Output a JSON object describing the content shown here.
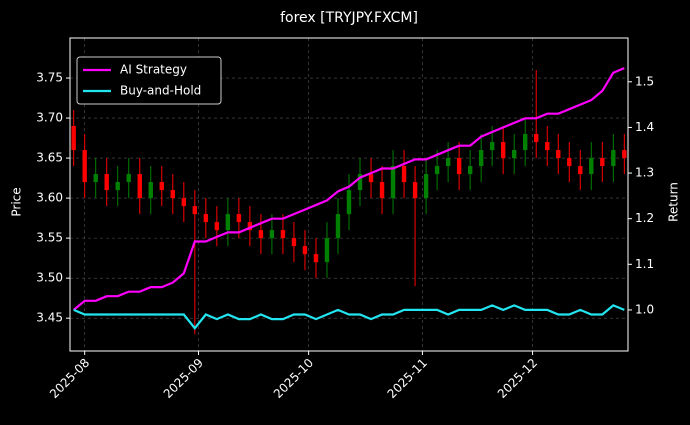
{
  "chart_data": {
    "type": "candlestick",
    "title": "forex [TRYJPY.FXCM]",
    "ylabel": "Price",
    "y2label": "Return",
    "x": [
      "2025-07-29",
      "2025-08-01",
      "2025-08-04",
      "2025-08-07",
      "2025-08-10",
      "2025-08-13",
      "2025-08-16",
      "2025-08-19",
      "2025-08-22",
      "2025-08-25",
      "2025-08-28",
      "2025-08-31",
      "2025-09-03",
      "2025-09-06",
      "2025-09-09",
      "2025-09-12",
      "2025-09-15",
      "2025-09-18",
      "2025-09-21",
      "2025-09-24",
      "2025-09-27",
      "2025-09-30",
      "2025-10-03",
      "2025-10-06",
      "2025-10-09",
      "2025-10-12",
      "2025-10-15",
      "2025-10-18",
      "2025-10-21",
      "2025-10-24",
      "2025-10-27",
      "2025-10-30",
      "2025-11-02",
      "2025-11-05",
      "2025-11-08",
      "2025-11-11",
      "2025-11-14",
      "2025-11-17",
      "2025-11-20",
      "2025-11-23",
      "2025-11-26",
      "2025-11-29",
      "2025-12-02",
      "2025-12-05",
      "2025-12-08",
      "2025-12-11",
      "2025-12-14",
      "2025-12-17",
      "2025-12-20",
      "2025-12-23",
      "2025-12-26"
    ],
    "open": [
      3.69,
      3.66,
      3.62,
      3.63,
      3.61,
      3.62,
      3.63,
      3.6,
      3.62,
      3.61,
      3.6,
      3.59,
      3.58,
      3.57,
      3.56,
      3.58,
      3.57,
      3.56,
      3.55,
      3.56,
      3.55,
      3.54,
      3.53,
      3.52,
      3.55,
      3.58,
      3.61,
      3.63,
      3.62,
      3.6,
      3.64,
      3.62,
      3.6,
      3.63,
      3.64,
      3.65,
      3.63,
      3.64,
      3.66,
      3.67,
      3.65,
      3.66,
      3.68,
      3.67,
      3.66,
      3.65,
      3.64,
      3.63,
      3.65,
      3.64,
      3.66
    ],
    "high": [
      3.71,
      3.68,
      3.65,
      3.65,
      3.64,
      3.65,
      3.65,
      3.64,
      3.64,
      3.63,
      3.62,
      3.61,
      3.6,
      3.59,
      3.6,
      3.6,
      3.59,
      3.58,
      3.58,
      3.58,
      3.57,
      3.56,
      3.55,
      3.57,
      3.6,
      3.63,
      3.65,
      3.65,
      3.64,
      3.66,
      3.66,
      3.64,
      3.65,
      3.66,
      3.67,
      3.67,
      3.66,
      3.68,
      3.69,
      3.69,
      3.68,
      3.7,
      3.76,
      3.69,
      3.68,
      3.67,
      3.66,
      3.67,
      3.67,
      3.68,
      3.68
    ],
    "low": [
      3.64,
      3.6,
      3.6,
      3.59,
      3.59,
      3.6,
      3.58,
      3.58,
      3.59,
      3.58,
      3.57,
      3.43,
      3.55,
      3.54,
      3.54,
      3.55,
      3.54,
      3.53,
      3.53,
      3.53,
      3.52,
      3.51,
      3.5,
      3.5,
      3.53,
      3.56,
      3.59,
      3.6,
      3.58,
      3.58,
      3.6,
      3.49,
      3.58,
      3.61,
      3.62,
      3.61,
      3.61,
      3.62,
      3.64,
      3.63,
      3.63,
      3.64,
      3.65,
      3.64,
      3.63,
      3.62,
      3.61,
      3.61,
      3.62,
      3.62,
      3.63
    ],
    "close": [
      3.66,
      3.62,
      3.63,
      3.61,
      3.62,
      3.63,
      3.6,
      3.62,
      3.61,
      3.6,
      3.59,
      3.58,
      3.57,
      3.56,
      3.58,
      3.57,
      3.56,
      3.55,
      3.56,
      3.55,
      3.54,
      3.53,
      3.52,
      3.55,
      3.58,
      3.61,
      3.63,
      3.62,
      3.6,
      3.64,
      3.62,
      3.6,
      3.63,
      3.64,
      3.65,
      3.63,
      3.64,
      3.66,
      3.67,
      3.65,
      3.66,
      3.68,
      3.67,
      3.66,
      3.65,
      3.64,
      3.63,
      3.65,
      3.64,
      3.66,
      3.65
    ],
    "up_color": "#008000",
    "down_color": "#ff0000",
    "series": [
      {
        "name": "AI Strategy",
        "color": "#ff00ff",
        "axis": "y2",
        "values": [
          1.0,
          1.02,
          1.02,
          1.03,
          1.03,
          1.04,
          1.04,
          1.05,
          1.05,
          1.06,
          1.08,
          1.15,
          1.15,
          1.16,
          1.17,
          1.17,
          1.18,
          1.19,
          1.2,
          1.2,
          1.21,
          1.22,
          1.23,
          1.24,
          1.26,
          1.27,
          1.29,
          1.3,
          1.31,
          1.31,
          1.32,
          1.33,
          1.33,
          1.34,
          1.35,
          1.36,
          1.36,
          1.38,
          1.39,
          1.4,
          1.41,
          1.42,
          1.42,
          1.43,
          1.43,
          1.44,
          1.45,
          1.46,
          1.48,
          1.52,
          1.53
        ]
      },
      {
        "name": "Buy-and-Hold",
        "color": "#22e5f0",
        "axis": "y2",
        "values": [
          1.0,
          0.99,
          0.99,
          0.99,
          0.99,
          0.99,
          0.99,
          0.99,
          0.99,
          0.99,
          0.99,
          0.96,
          0.99,
          0.98,
          0.99,
          0.98,
          0.98,
          0.99,
          0.98,
          0.98,
          0.99,
          0.99,
          0.98,
          0.99,
          1.0,
          0.99,
          0.99,
          0.98,
          0.99,
          0.99,
          1.0,
          1.0,
          1.0,
          1.0,
          0.99,
          1.0,
          1.0,
          1.0,
          1.01,
          1.0,
          1.01,
          1.0,
          1.0,
          1.0,
          0.99,
          0.99,
          1.0,
          0.99,
          0.99,
          1.01,
          1.0
        ]
      }
    ],
    "xlim": [
      "2025-07-28",
      "2025-12-27"
    ],
    "xticks": [
      {
        "value": "2025-08-01",
        "label": "2025-08"
      },
      {
        "value": "2025-09-01",
        "label": "2025-09"
      },
      {
        "value": "2025-10-01",
        "label": "2025-10"
      },
      {
        "value": "2025-11-01",
        "label": "2025-11"
      },
      {
        "value": "2025-12-01",
        "label": "2025-12"
      }
    ],
    "ylim": [
      3.409,
      3.8
    ],
    "yticks": [
      3.45,
      {
        "value": 3.5,
        "label": "3.50"
      },
      3.55,
      {
        "value": 3.6,
        "label": "3.60"
      },
      3.65,
      {
        "value": 3.7,
        "label": "3.70"
      },
      3.75
    ],
    "y2lim": [
      0.91,
      1.596
    ],
    "y2ticks": [
      {
        "value": 1,
        "label": "1.0"
      },
      1.1,
      1.2,
      1.3,
      1.4,
      1.5
    ],
    "grid": true,
    "legend": "upper left"
  }
}
